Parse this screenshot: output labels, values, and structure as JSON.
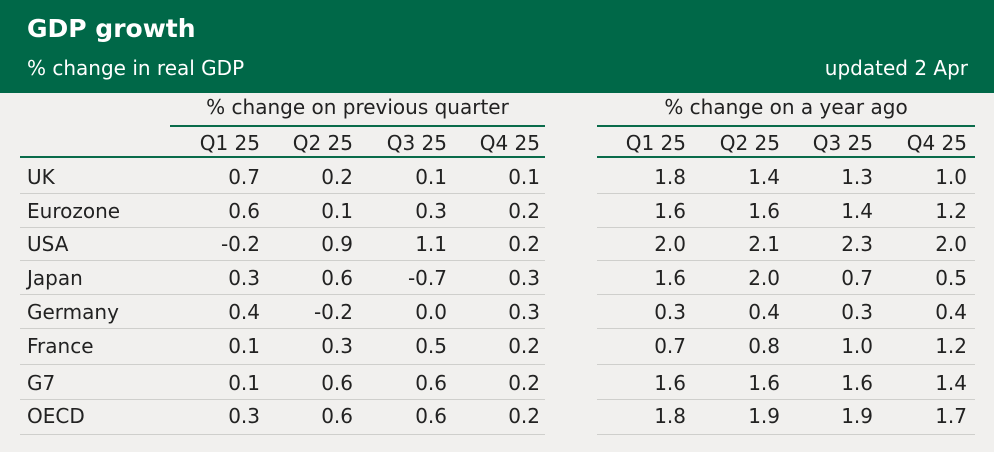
{
  "header": {
    "title": "GDP growth",
    "subtitle": "% change in real GDP",
    "updated": "updated 2 Apr"
  },
  "groups": [
    {
      "label": "% change on previous quarter",
      "columns": [
        "Q1 25",
        "Q2 25",
        "Q3 25",
        "Q4 25"
      ]
    },
    {
      "label": "% change on a year ago",
      "columns": [
        "Q1 25",
        "Q2 25",
        "Q3 25",
        "Q4 25"
      ]
    }
  ],
  "table": {
    "rows": [
      {
        "name": "UK",
        "cells": [
          "0.7",
          "0.2",
          "0.1",
          "0.1",
          "1.8",
          "1.4",
          "1.3",
          "1.0"
        ]
      },
      {
        "name": "Eurozone",
        "cells": [
          "0.6",
          "0.1",
          "0.3",
          "0.2",
          "1.6",
          "1.6",
          "1.4",
          "1.2"
        ]
      },
      {
        "name": "USA",
        "cells": [
          "-0.2",
          "0.9",
          "1.1",
          "0.2",
          "2.0",
          "2.1",
          "2.3",
          "2.0"
        ]
      },
      {
        "name": "Japan",
        "cells": [
          "0.3",
          "0.6",
          "-0.7",
          "0.3",
          "1.6",
          "2.0",
          "0.7",
          "0.5"
        ]
      },
      {
        "name": "Germany",
        "cells": [
          "0.4",
          "-0.2",
          "0.0",
          "0.3",
          "0.3",
          "0.4",
          "0.3",
          "0.4"
        ]
      },
      {
        "name": "France",
        "cells": [
          "0.1",
          "0.3",
          "0.5",
          "0.2",
          "0.7",
          "0.8",
          "1.0",
          "1.2"
        ]
      },
      {
        "name": "G7",
        "cells": [
          "0.1",
          "0.6",
          "0.6",
          "0.2",
          "1.6",
          "1.6",
          "1.6",
          "1.4"
        ]
      },
      {
        "name": "OECD",
        "cells": [
          "0.3",
          "0.6",
          "0.6",
          "0.2",
          "1.8",
          "1.9",
          "1.9",
          "1.7"
        ]
      }
    ]
  }
}
